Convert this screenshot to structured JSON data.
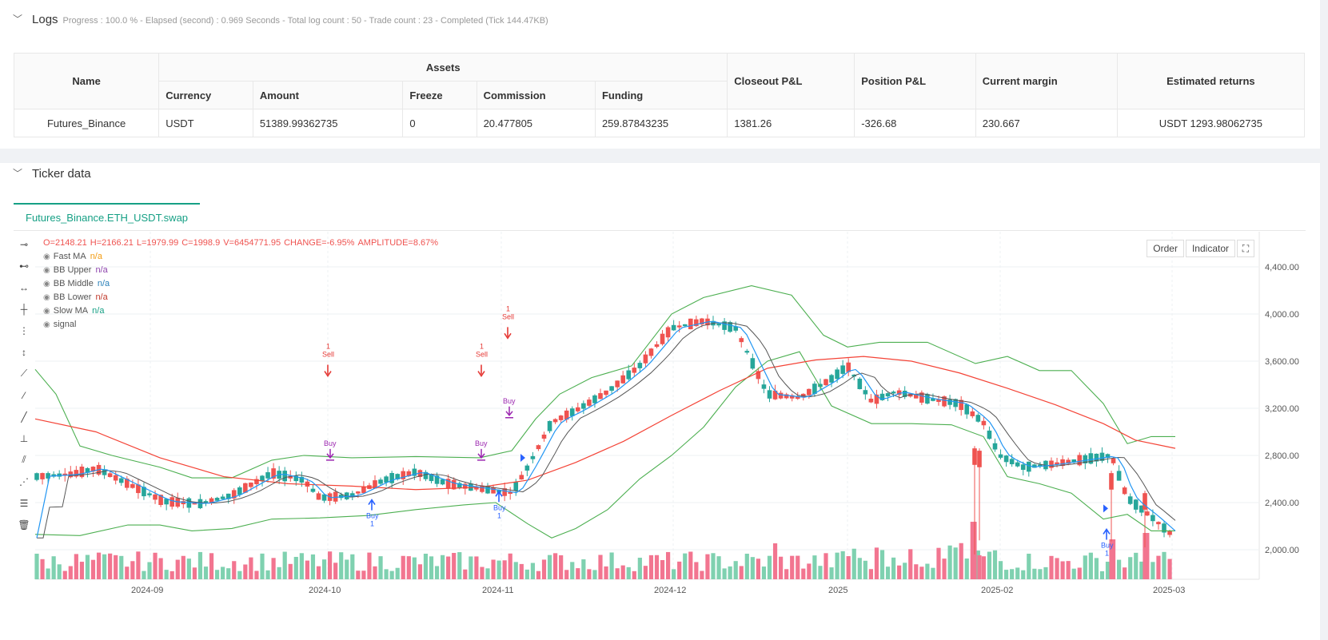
{
  "logs": {
    "title": "Logs",
    "status": "Progress : 100.0 % - Elapsed (second) : 0.969  Seconds - Total log count : 50 - Trade count : 23 - Completed (Tick 144.47KB)"
  },
  "assets_table": {
    "headers": {
      "name": "Name",
      "assets": "Assets",
      "currency": "Currency",
      "amount": "Amount",
      "freeze": "Freeze",
      "commission": "Commission",
      "funding": "Funding",
      "closeout_pl": "Closeout P&L",
      "position_pl": "Position P&L",
      "current_margin": "Current margin",
      "estimated_returns": "Estimated returns"
    },
    "row": {
      "name": "Futures_Binance",
      "currency": "USDT",
      "amount": "51389.99362735",
      "freeze": "0",
      "commission": "20.477805",
      "funding": "259.87843235",
      "closeout_pl": "1381.26",
      "position_pl": "-326.68",
      "current_margin": "230.667",
      "estimated_returns": "USDT 1293.98062735"
    }
  },
  "ticker": {
    "title": "Ticker data",
    "tab_label": "Futures_Binance.ETH_USDT.swap",
    "order_btn": "Order",
    "indicator_btn": "Indicator",
    "ohlc": {
      "o": "O=2148.21",
      "h": "H=2166.21",
      "l": "L=1979.99",
      "c": "C=1998.9",
      "v": "V=6454771.95",
      "change_label": "CHANGE=",
      "change": "-6.95%",
      "amplitude_label": "AMPLITUDE=",
      "amplitude": "8.67%"
    },
    "legend": [
      {
        "name": "Fast MA",
        "value": "n/a",
        "color": "#f39c12"
      },
      {
        "name": "BB Upper",
        "value": "n/a",
        "color": "#8e44ad"
      },
      {
        "name": "BB Middle",
        "value": "n/a",
        "color": "#2980b9"
      },
      {
        "name": "BB Lower",
        "value": "n/a",
        "color": "#c0392b"
      },
      {
        "name": "Slow MA",
        "value": "n/a",
        "color": "#16a085"
      },
      {
        "name": "signal",
        "value": "",
        "color": "#555"
      }
    ]
  },
  "chart_data": {
    "type": "candlestick",
    "y_ticks": [
      "4,400.00",
      "4,000.00",
      "3,600.00",
      "3,200.00",
      "2,800.00",
      "2,400.00",
      "2,000.00"
    ],
    "y_values": [
      4400,
      4000,
      3600,
      3200,
      2800,
      2400,
      2000
    ],
    "x_ticks": [
      "2024-09",
      "2024-10",
      "2024-11",
      "2024-12",
      "2025",
      "2025-02",
      "2025-03"
    ],
    "colors": {
      "up": "#26a69a",
      "down": "#ef5350",
      "fast_ma": "#2196f3",
      "slow_ma": "#f44336",
      "mid": "#555555",
      "bb": "#4caf50",
      "buy": "#2962ff",
      "sell": "#e53935",
      "close": "#9c27b0"
    },
    "signals": [
      {
        "type": "sell",
        "label": "Sell",
        "num": "1"
      },
      {
        "type": "sell",
        "label": "Sell",
        "num": "1"
      },
      {
        "type": "sell",
        "label": "Sell",
        "num": "1"
      },
      {
        "type": "close",
        "label": "Buy",
        "num": ""
      },
      {
        "type": "close",
        "label": "Buy",
        "num": ""
      },
      {
        "type": "close",
        "label": "Buy",
        "num": ""
      },
      {
        "type": "buy",
        "label": "Buy",
        "num": "1"
      },
      {
        "type": "buy",
        "label": "Buy",
        "num": "1"
      },
      {
        "type": "buy",
        "label": "Buy",
        "num": "1"
      }
    ]
  }
}
